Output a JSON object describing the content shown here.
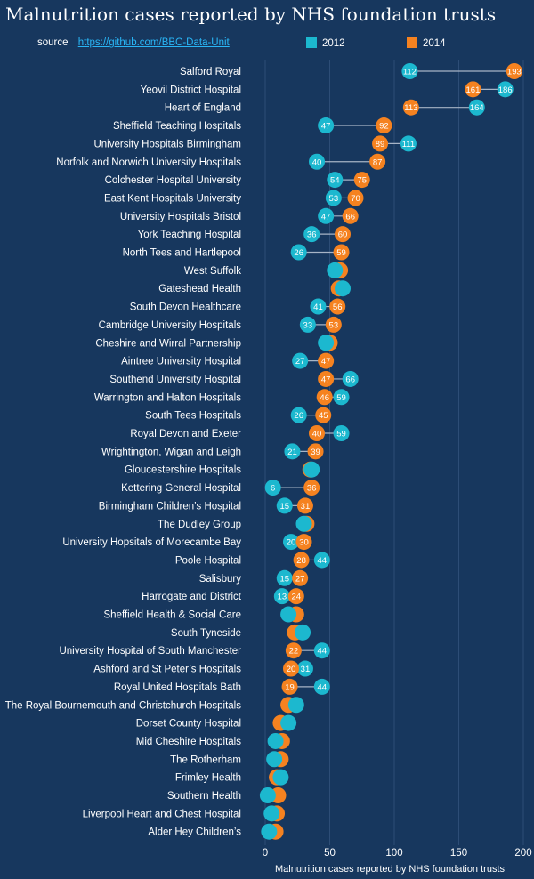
{
  "title": "Malnutrition cases reported by NHS foundation trusts",
  "source": {
    "label": "source",
    "link_text": "https://github.com/BBC-Data-Unit"
  },
  "colors": {
    "background": "#17375e",
    "series_2012": "#1cb8cf",
    "series_2014": "#f58220",
    "connector": "#a7b4c6"
  },
  "chart_data": {
    "type": "dot-plot",
    "title": "Malnutrition cases reported by NHS foundation trusts",
    "xlabel": "Malnutrition cases reported by NHS foundation trusts",
    "ylabel": "",
    "xlim": [
      -5,
      200
    ],
    "xticks": [
      0,
      50,
      100,
      150,
      200
    ],
    "grid": true,
    "legend_position": "top",
    "series": [
      {
        "name": "2012",
        "color": "#1cb8cf"
      },
      {
        "name": "2014",
        "color": "#f58220"
      }
    ],
    "categories": [
      {
        "name": "Salford Royal",
        "v2012": 112,
        "v2014": 193,
        "labeled": true
      },
      {
        "name": "Yeovil District Hospital",
        "v2012": 186,
        "v2014": 161,
        "labeled": true
      },
      {
        "name": "Heart of England",
        "v2012": 164,
        "v2014": 113,
        "labeled": true
      },
      {
        "name": "Sheffield Teaching Hospitals",
        "v2012": 47,
        "v2014": 92,
        "labeled": true
      },
      {
        "name": "University Hospitals Birmingham",
        "v2012": 111,
        "v2014": 89,
        "labeled": true
      },
      {
        "name": "Norfolk and Norwich University Hospitals",
        "v2012": 40,
        "v2014": 87,
        "labeled": true
      },
      {
        "name": "Colchester Hospital University",
        "v2012": 54,
        "v2014": 75,
        "labeled": true
      },
      {
        "name": "East Kent Hospitals University",
        "v2012": 53,
        "v2014": 70,
        "labeled": true
      },
      {
        "name": "University Hospitals Bristol",
        "v2012": 47,
        "v2014": 66,
        "labeled": true
      },
      {
        "name": "York Teaching Hospital",
        "v2012": 36,
        "v2014": 60,
        "labeled": true
      },
      {
        "name": "North Tees and Hartlepool",
        "v2012": 26,
        "v2014": 59,
        "labeled": true
      },
      {
        "name": "West Suffolk",
        "v2012": 54,
        "v2014": 58,
        "labeled": false
      },
      {
        "name": "Gateshead Health",
        "v2012": 60,
        "v2014": 57,
        "labeled": false
      },
      {
        "name": "South Devon Healthcare",
        "v2012": 41,
        "v2014": 56,
        "labeled": true
      },
      {
        "name": "Cambridge University Hospitals",
        "v2012": 33,
        "v2014": 53,
        "labeled": true
      },
      {
        "name": "Cheshire and Wirral Partnership",
        "v2012": 47,
        "v2014": 50,
        "labeled": false
      },
      {
        "name": "Aintree University Hospital",
        "v2012": 27,
        "v2014": 47,
        "labeled": true
      },
      {
        "name": "Southend University Hospital",
        "v2012": 66,
        "v2014": 47,
        "labeled": true
      },
      {
        "name": "Warrington and Halton Hospitals",
        "v2012": 59,
        "v2014": 46,
        "labeled": true
      },
      {
        "name": "South Tees Hospitals",
        "v2012": 26,
        "v2014": 45,
        "labeled": true
      },
      {
        "name": "Royal Devon and Exeter",
        "v2012": 59,
        "v2014": 40,
        "labeled": true
      },
      {
        "name": "Wrightington, Wigan and Leigh",
        "v2012": 21,
        "v2014": 39,
        "labeled": true
      },
      {
        "name": "Gloucestershire Hospitals",
        "v2012": 36,
        "v2014": 35,
        "labeled": false
      },
      {
        "name": "Kettering General Hospital",
        "v2012": 6,
        "v2014": 36,
        "labeled": true
      },
      {
        "name": "Birmingham Children’s Hospital",
        "v2012": 15,
        "v2014": 31,
        "labeled": true
      },
      {
        "name": "The Dudley Group",
        "v2012": 30,
        "v2014": 32,
        "labeled": false
      },
      {
        "name": "University Hopsitals of Morecambe Bay",
        "v2012": 20,
        "v2014": 30,
        "labeled": true
      },
      {
        "name": "Poole Hospital",
        "v2012": 44,
        "v2014": 28,
        "labeled": true
      },
      {
        "name": "Salisbury",
        "v2012": 15,
        "v2014": 27,
        "labeled": true
      },
      {
        "name": "Harrogate and District",
        "v2012": 13,
        "v2014": 24,
        "labeled": true
      },
      {
        "name": "Sheffield Health & Social Care",
        "v2012": 18,
        "v2014": 24,
        "labeled": false
      },
      {
        "name": "South Tyneside",
        "v2012": 29,
        "v2014": 23,
        "labeled": false
      },
      {
        "name": "University Hospital of South Manchester",
        "v2012": 44,
        "v2014": 22,
        "labeled": true
      },
      {
        "name": "Ashford and St Peter’s Hospitals",
        "v2012": 31,
        "v2014": 20,
        "labeled": true
      },
      {
        "name": "Royal United Hospitals Bath",
        "v2012": 44,
        "v2014": 19,
        "labeled": true
      },
      {
        "name": "The Royal Bournemouth and Christchurch Hospitals",
        "v2012": 24,
        "v2014": 18,
        "labeled": false
      },
      {
        "name": "Dorset County Hospital",
        "v2012": 18,
        "v2014": 12,
        "labeled": false
      },
      {
        "name": "Mid Cheshire Hospitals",
        "v2012": 8,
        "v2014": 13,
        "labeled": false
      },
      {
        "name": "The Rotherham",
        "v2012": 7,
        "v2014": 12,
        "labeled": false
      },
      {
        "name": "Frimley Health",
        "v2012": 12,
        "v2014": 9,
        "labeled": false
      },
      {
        "name": "Southern Health",
        "v2012": 2,
        "v2014": 10,
        "labeled": false
      },
      {
        "name": "Liverpool Heart and Chest Hospital",
        "v2012": 5,
        "v2014": 9,
        "labeled": false
      },
      {
        "name": "Alder Hey Children’s",
        "v2012": 3,
        "v2014": 8,
        "labeled": false
      }
    ]
  }
}
